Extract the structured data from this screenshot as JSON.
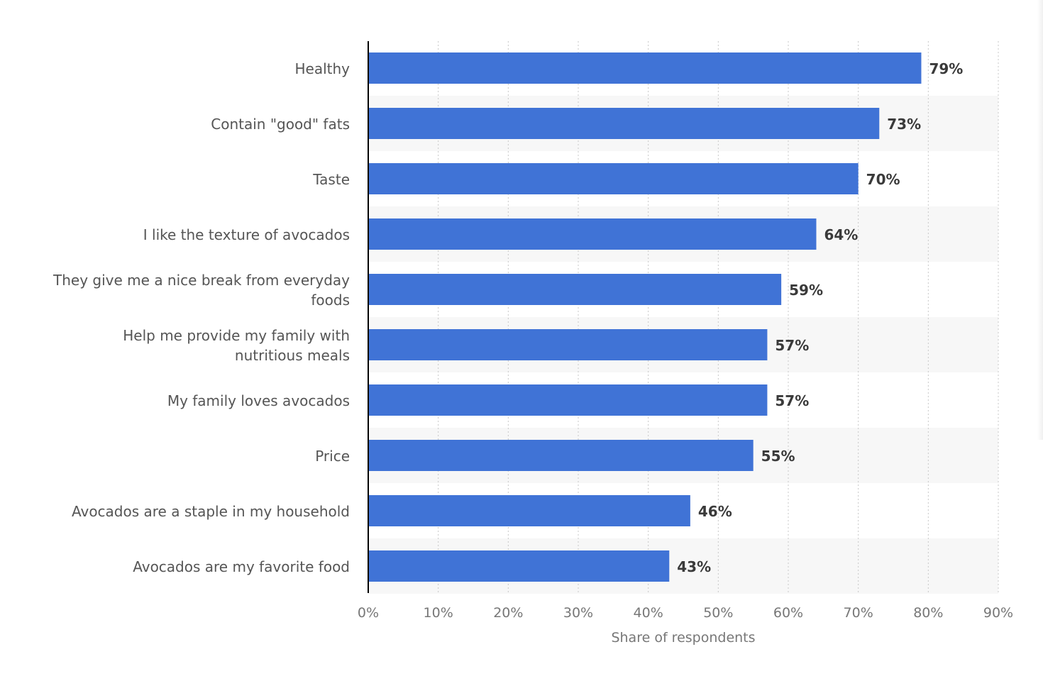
{
  "chart_data": {
    "type": "bar",
    "orientation": "horizontal",
    "categories": [
      "Healthy",
      "Contain \"good\" fats",
      "Taste",
      "I like the texture of avocados",
      "They give me a nice break from everyday foods",
      "Help me provide my family with nutritious meals",
      "My family loves avocados",
      "Price",
      "Avocados are a staple in my household",
      "Avocados are my favorite food"
    ],
    "category_lines": [
      [
        "Healthy"
      ],
      [
        "Contain \"good\" fats"
      ],
      [
        "Taste"
      ],
      [
        "I like the texture of avocados"
      ],
      [
        "They give me a nice break from everyday",
        "foods"
      ],
      [
        "Help me provide my family with",
        "nutritious meals"
      ],
      [
        "My family loves avocados"
      ],
      [
        "Price"
      ],
      [
        "Avocados are a staple in my household"
      ],
      [
        "Avocados are my favorite food"
      ]
    ],
    "values": [
      79,
      73,
      70,
      64,
      59,
      57,
      57,
      55,
      46,
      43
    ],
    "data_labels": [
      "79%",
      "73%",
      "70%",
      "64%",
      "59%",
      "57%",
      "57%",
      "55%",
      "46%",
      "43%"
    ],
    "x_ticks": [
      0,
      10,
      20,
      30,
      40,
      50,
      60,
      70,
      80,
      90
    ],
    "x_tick_labels": [
      "0%",
      "10%",
      "20%",
      "30%",
      "40%",
      "50%",
      "60%",
      "70%",
      "80%",
      "90%"
    ],
    "xlim": [
      0,
      90
    ],
    "xlabel": "Share of respondents",
    "ylabel": "",
    "title": "",
    "grid": "vertical dotted",
    "legend": "none",
    "colors": {
      "bar": "#4073d6",
      "axis": "#000000",
      "grid": "#c8c8c8",
      "band": "#f7f7f7",
      "category_text": "#555555",
      "tick_text": "#777777",
      "value_text": "#3a3a3a"
    }
  }
}
